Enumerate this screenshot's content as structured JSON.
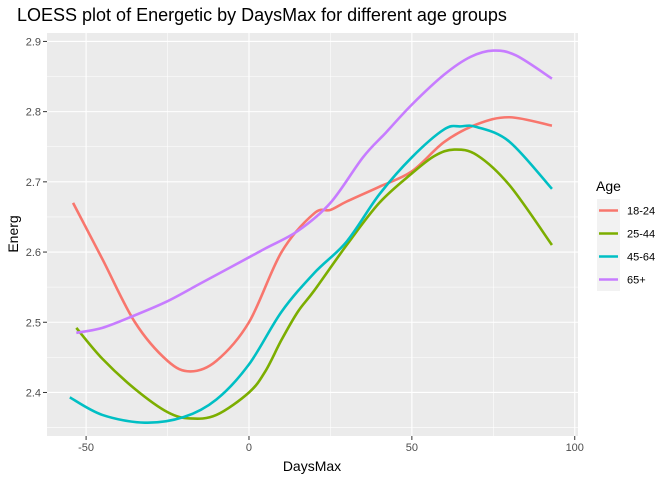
{
  "chart_data": {
    "type": "line",
    "title": "LOESS plot of Energetic by DaysMax for different age groups",
    "xlabel": "DaysMax",
    "ylabel": "Energ",
    "xlim": [
      -62,
      101
    ],
    "ylim": [
      2.338,
      2.912
    ],
    "x_ticks": [
      -50,
      0,
      50,
      100
    ],
    "y_ticks": [
      2.4,
      2.5,
      2.6,
      2.7,
      2.8,
      2.9
    ],
    "x_tick_labels": [
      "-50",
      "0",
      "50",
      "100"
    ],
    "y_tick_labels": [
      "2.4",
      "2.5",
      "2.6",
      "2.7",
      "2.8",
      "2.9"
    ],
    "grid": true,
    "legend": {
      "title": "Age",
      "position": "right"
    },
    "series": [
      {
        "name": "18-24",
        "color": "#F8766D",
        "x": [
          -54,
          -45,
          -35,
          -25,
          -18,
          -10,
          0,
          10,
          20,
          25,
          30,
          40,
          50,
          60,
          70,
          80,
          93
        ],
        "y": [
          2.67,
          2.59,
          2.5,
          2.445,
          2.43,
          2.445,
          2.5,
          2.6,
          2.655,
          2.66,
          2.672,
          2.693,
          2.715,
          2.757,
          2.782,
          2.792,
          2.78
        ]
      },
      {
        "name": "25-44",
        "color": "#7CAE00",
        "x": [
          -53,
          -45,
          -35,
          -25,
          -18,
          -10,
          0,
          5,
          10,
          15,
          20,
          30,
          40,
          50,
          57,
          63,
          70,
          80,
          93
        ],
        "y": [
          2.492,
          2.448,
          2.405,
          2.372,
          2.363,
          2.368,
          2.4,
          2.43,
          2.475,
          2.515,
          2.545,
          2.61,
          2.67,
          2.712,
          2.737,
          2.746,
          2.738,
          2.695,
          2.61
        ]
      },
      {
        "name": "45-64",
        "color": "#00BFC4",
        "x": [
          -55,
          -45,
          -32,
          -20,
          -10,
          0,
          10,
          20,
          30,
          40,
          50,
          60,
          65,
          70,
          80,
          93
        ],
        "y": [
          2.393,
          2.368,
          2.357,
          2.365,
          2.39,
          2.44,
          2.515,
          2.57,
          2.615,
          2.682,
          2.735,
          2.775,
          2.779,
          2.778,
          2.757,
          2.69
        ]
      },
      {
        "name": "65+",
        "color": "#C77CFF",
        "x": [
          -53,
          -45,
          -35,
          -25,
          -15,
          -5,
          5,
          15,
          25,
          35,
          42,
          50,
          60,
          68,
          75,
          82,
          93
        ],
        "y": [
          2.485,
          2.492,
          2.51,
          2.53,
          2.555,
          2.58,
          2.605,
          2.63,
          2.67,
          2.735,
          2.77,
          2.81,
          2.853,
          2.878,
          2.887,
          2.88,
          2.847
        ]
      }
    ]
  }
}
